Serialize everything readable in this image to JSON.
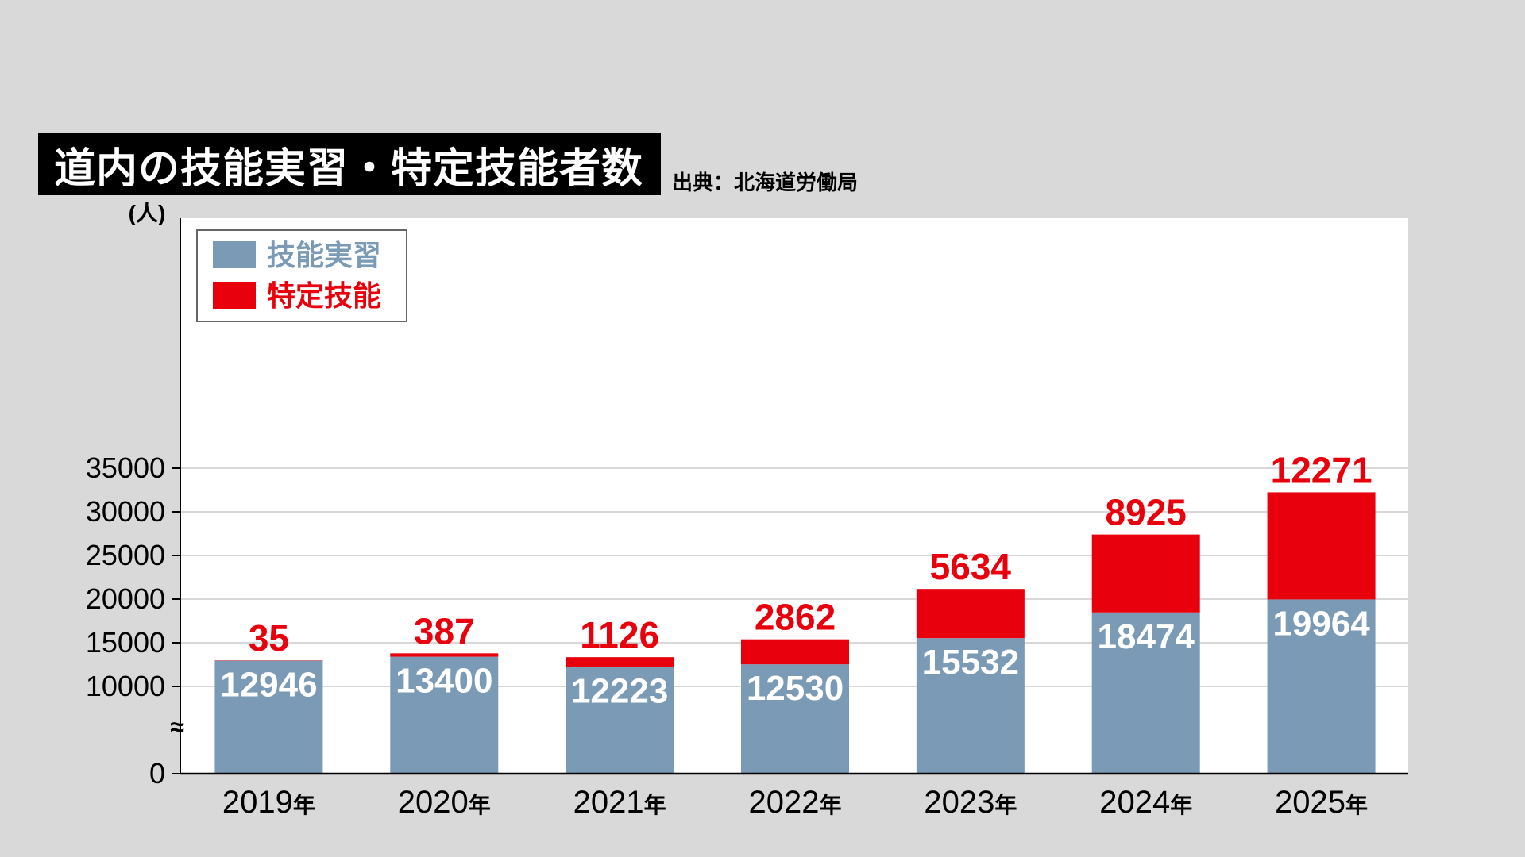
{
  "title": "道内の技能実習・特定技能者数",
  "source": "出典：北海道労働局",
  "chart_data": {
    "type": "bar",
    "stacked": true,
    "categories": [
      "2019",
      "2020",
      "2021",
      "2022",
      "2023",
      "2024",
      "2025"
    ],
    "category_suffix": "年",
    "series": [
      {
        "name": "技能実習",
        "color": "#7b9ab5",
        "values": [
          12946,
          13400,
          12223,
          12530,
          15532,
          18474,
          19964
        ]
      },
      {
        "name": "特定技能",
        "color": "#e8000d",
        "values": [
          35,
          387,
          1126,
          2862,
          5634,
          8925,
          12271
        ]
      }
    ],
    "ylabel": "(人)",
    "yticks": [
      0,
      10000,
      15000,
      20000,
      25000,
      30000,
      35000
    ],
    "ylim": [
      0,
      35000
    ],
    "axis_break": true,
    "axis_break_symbol": "≈",
    "grid": true,
    "legend_position": "top-left"
  }
}
